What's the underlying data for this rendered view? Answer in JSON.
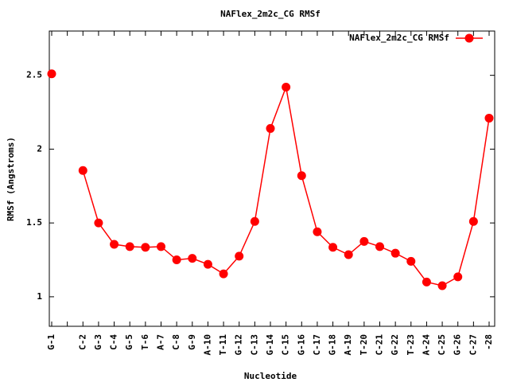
{
  "chart_data": {
    "type": "line",
    "title": "NAFlex_2m2c_CG RMSf",
    "x_label": "Nucleotide",
    "y_label": "RMSf (Angstroms)",
    "categories": [
      "G-1",
      null,
      "C-2",
      "G-3",
      "C-4",
      "G-5",
      "T-6",
      "A-7",
      "C-8",
      "G-9",
      "A-10",
      "T-11",
      "G-12",
      "C-13",
      "G-14",
      "C-15",
      "G-16",
      "C-17",
      "G-18",
      "A-19",
      "T-20",
      "C-21",
      "G-22",
      "T-23",
      "A-24",
      "C-25",
      "G-26",
      "C-27",
      "-28"
    ],
    "series": [
      {
        "name": "NAFlex_2m2c_CG RMSf",
        "color": "#ff0000",
        "values": [
          2.51,
          null,
          1.855,
          1.5,
          1.355,
          1.34,
          1.335,
          1.34,
          1.25,
          1.26,
          1.22,
          1.155,
          1.275,
          1.51,
          2.14,
          2.42,
          1.82,
          1.44,
          1.335,
          1.285,
          1.375,
          1.34,
          1.295,
          1.24,
          1.1,
          1.075,
          1.135,
          1.51,
          2.21
        ]
      }
    ],
    "ylim": [
      0.8,
      2.8
    ],
    "yticks": [
      1,
      1.5,
      2,
      2.5
    ],
    "legend": "top-right",
    "grid": false
  }
}
